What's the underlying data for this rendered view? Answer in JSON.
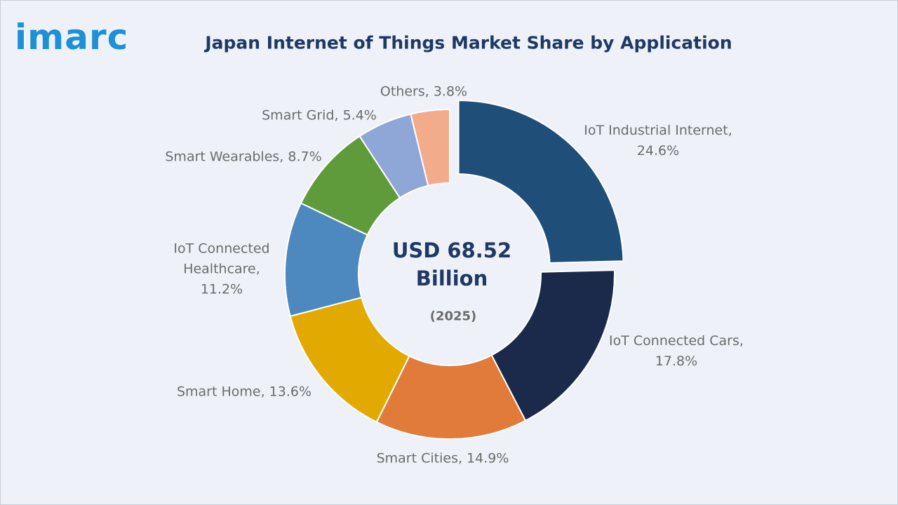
{
  "logo": "imarc",
  "chart_data": {
    "type": "donut",
    "title": "Japan Internet of Things Market Share by Application",
    "center_label": "USD 68.52 Billion",
    "center_sublabel": "(2025)",
    "categories": [
      "IoT Industrial Internet",
      "IoT Connected Cars",
      "Smart Cities",
      "Smart Home",
      "IoT Connected Healthcare",
      "Smart Wearables",
      "Smart Grid",
      "Others"
    ],
    "values": [
      24.6,
      17.8,
      14.9,
      13.6,
      11.2,
      8.7,
      5.4,
      3.8
    ],
    "value_labels": [
      "IoT Industrial Internet, 24.6%",
      "IoT Connected Cars, 17.8%",
      "Smart Cities, 14.9%",
      "Smart Home, 13.6%",
      "IoT Connected Healthcare, 11.2%",
      "Smart Wearables, 8.7%",
      "Smart Grid, 5.4%",
      "Others, 3.8%"
    ],
    "colors": [
      "#1f4e79",
      "#1b2a4b",
      "#e07b39",
      "#e2a900",
      "#4d88bf",
      "#5f9b3b",
      "#8fa7d6",
      "#f2ab8b"
    ]
  }
}
